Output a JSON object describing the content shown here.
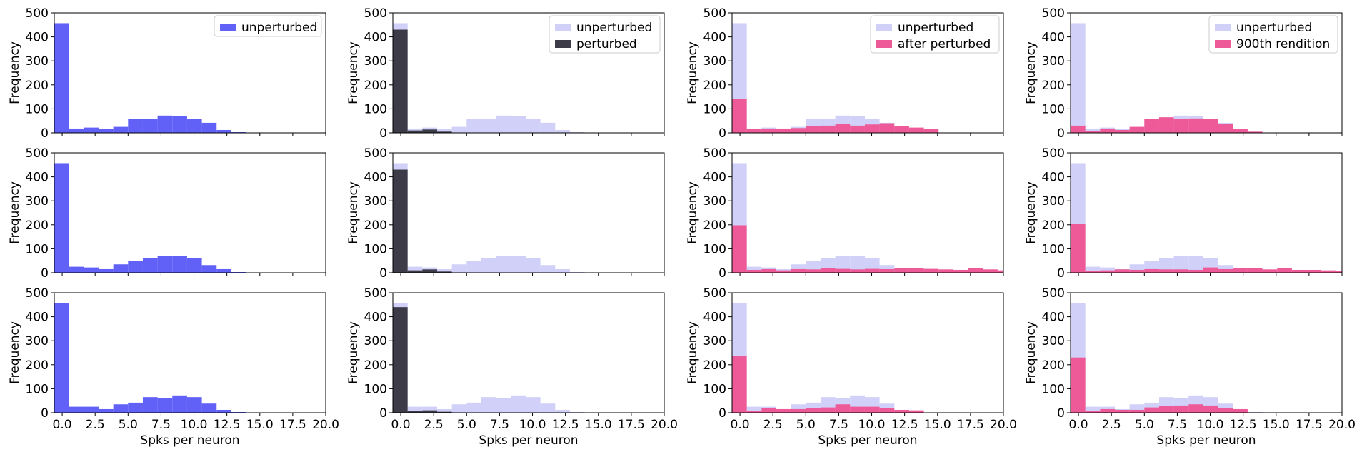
{
  "chart_data": {
    "type": "bar",
    "layout": "3x4 grid of histograms",
    "bins": [
      0,
      0.833,
      1.667,
      2.5,
      3.333,
      4.167,
      5,
      5.833,
      6.667,
      7.5,
      8.333,
      9.167,
      10,
      10.833,
      11.667,
      12.5,
      13.333,
      14.167,
      15,
      15.833,
      16.667,
      17.5,
      18.333,
      19.167,
      20
    ],
    "bin_start": -0.6,
    "bin_width": 1.12,
    "xlim": [
      -0.6,
      20
    ],
    "ylim": [
      0,
      500
    ],
    "xticks": [
      "0.0",
      "2.5",
      "5.0",
      "7.5",
      "10.0",
      "12.5",
      "15.0",
      "17.5",
      "20.0"
    ],
    "xtick_values": [
      0,
      2.5,
      5,
      7.5,
      10,
      12.5,
      15,
      17.5,
      20
    ],
    "yticks": [
      "0",
      "100",
      "200",
      "300",
      "400",
      "500"
    ],
    "ytick_values": [
      0,
      100,
      200,
      300,
      400,
      500
    ],
    "xlabel": "Spks per neuron",
    "ylabel": "Frequency",
    "colors": {
      "unperturbed": "#6161f7",
      "unperturbed_faded": "#d0d0f8",
      "perturbed": "#3d3b47",
      "after_perturbed": "#ee5a98",
      "axis": "#000000"
    },
    "legends": [
      [
        "unperturbed"
      ],
      [
        "unperturbed",
        "perturbed"
      ],
      [
        "unperturbed",
        "after perturbed"
      ],
      [
        "unperturbed",
        "900th rendition"
      ]
    ],
    "panels": [
      {
        "row": 0,
        "col": 0,
        "series": [
          {
            "name": "unperturbed",
            "style": "unperturbed",
            "values": [
              457,
              18,
              22,
              15,
              25,
              58,
              58,
              72,
              70,
              58,
              42,
              12,
              3,
              0,
              0,
              0,
              0,
              0
            ]
          }
        ]
      },
      {
        "row": 0,
        "col": 1,
        "series": [
          {
            "name": "unperturbed",
            "style": "unperturbed_faded",
            "values": [
              457,
              18,
              22,
              15,
              25,
              58,
              58,
              72,
              70,
              58,
              42,
              12,
              3,
              0,
              0,
              0,
              0,
              0
            ]
          },
          {
            "name": "perturbed",
            "style": "perturbed",
            "values": [
              430,
              10,
              14,
              5,
              0,
              0,
              0,
              0,
              0,
              0,
              0,
              0,
              0,
              0,
              0,
              0,
              0,
              0
            ]
          }
        ]
      },
      {
        "row": 0,
        "col": 2,
        "series": [
          {
            "name": "unperturbed",
            "style": "unperturbed_faded",
            "values": [
              457,
              18,
              22,
              15,
              25,
              58,
              58,
              72,
              70,
              58,
              42,
              12,
              3,
              0,
              0,
              0,
              0,
              0
            ]
          },
          {
            "name": "after perturbed",
            "style": "after_perturbed",
            "values": [
              140,
              15,
              18,
              18,
              20,
              28,
              30,
              38,
              30,
              35,
              40,
              28,
              22,
              15,
              0,
              0,
              0,
              0
            ]
          }
        ]
      },
      {
        "row": 0,
        "col": 3,
        "series": [
          {
            "name": "unperturbed",
            "style": "unperturbed_faded",
            "values": [
              457,
              18,
              22,
              15,
              25,
              58,
              58,
              72,
              70,
              58,
              42,
              12,
              3,
              0,
              0,
              0,
              0,
              0
            ]
          },
          {
            "name": "900th rendition",
            "style": "after_perturbed",
            "values": [
              30,
              8,
              18,
              12,
              25,
              58,
              65,
              58,
              60,
              58,
              38,
              15,
              5,
              0,
              0,
              0,
              0,
              0
            ]
          }
        ]
      },
      {
        "row": 1,
        "col": 0,
        "series": [
          {
            "name": "unperturbed",
            "style": "unperturbed",
            "values": [
              457,
              25,
              22,
              15,
              35,
              48,
              60,
              70,
              70,
              60,
              32,
              15,
              3,
              0,
              0,
              0,
              0,
              0
            ]
          }
        ]
      },
      {
        "row": 1,
        "col": 1,
        "series": [
          {
            "name": "unperturbed",
            "style": "unperturbed_faded",
            "values": [
              457,
              25,
              22,
              15,
              35,
              48,
              60,
              70,
              70,
              60,
              32,
              15,
              3,
              0,
              0,
              0,
              0,
              0
            ]
          },
          {
            "name": "perturbed",
            "style": "perturbed",
            "values": [
              430,
              10,
              14,
              5,
              0,
              0,
              0,
              0,
              0,
              0,
              0,
              0,
              0,
              0,
              0,
              0,
              0,
              0
            ]
          }
        ]
      },
      {
        "row": 1,
        "col": 2,
        "series": [
          {
            "name": "unperturbed",
            "style": "unperturbed_faded",
            "values": [
              457,
              25,
              22,
              15,
              35,
              48,
              60,
              70,
              70,
              60,
              32,
              15,
              3,
              0,
              0,
              0,
              0,
              0
            ]
          },
          {
            "name": "after perturbed",
            "style": "after_perturbed",
            "values": [
              198,
              12,
              15,
              10,
              15,
              14,
              18,
              16,
              14,
              16,
              15,
              18,
              18,
              16,
              14,
              12,
              20,
              14,
              10,
              10
            ]
          }
        ]
      },
      {
        "row": 1,
        "col": 3,
        "series": [
          {
            "name": "unperturbed",
            "style": "unperturbed_faded",
            "values": [
              457,
              25,
              22,
              15,
              35,
              48,
              60,
              70,
              70,
              60,
              32,
              15,
              3,
              0,
              0,
              0,
              0,
              0
            ]
          },
          {
            "name": "900th rendition",
            "style": "after_perturbed",
            "values": [
              205,
              8,
              10,
              14,
              12,
              15,
              14,
              14,
              12,
              22,
              15,
              18,
              18,
              14,
              18,
              12,
              12,
              10,
              8
            ]
          }
        ]
      },
      {
        "row": 2,
        "col": 0,
        "series": [
          {
            "name": "unperturbed",
            "style": "unperturbed",
            "values": [
              457,
              25,
              25,
              15,
              35,
              42,
              65,
              60,
              72,
              65,
              38,
              12,
              3,
              0,
              0,
              0,
              0,
              0
            ]
          }
        ]
      },
      {
        "row": 2,
        "col": 1,
        "series": [
          {
            "name": "unperturbed",
            "style": "unperturbed_faded",
            "values": [
              457,
              25,
              25,
              15,
              35,
              42,
              65,
              60,
              72,
              65,
              38,
              12,
              3,
              0,
              0,
              0,
              0,
              0
            ]
          },
          {
            "name": "perturbed",
            "style": "perturbed",
            "values": [
              440,
              8,
              10,
              4,
              0,
              0,
              0,
              0,
              0,
              0,
              0,
              0,
              0,
              0,
              0,
              0,
              0,
              0
            ]
          }
        ]
      },
      {
        "row": 2,
        "col": 2,
        "series": [
          {
            "name": "unperturbed",
            "style": "unperturbed_faded",
            "values": [
              457,
              25,
              25,
              15,
              35,
              42,
              65,
              60,
              72,
              65,
              38,
              12,
              3,
              0,
              0,
              0,
              0,
              0
            ]
          },
          {
            "name": "after perturbed",
            "style": "after_perturbed",
            "values": [
              235,
              8,
              18,
              15,
              15,
              18,
              22,
              35,
              25,
              25,
              20,
              12,
              10,
              0,
              0,
              0,
              0,
              0
            ]
          }
        ]
      },
      {
        "row": 2,
        "col": 3,
        "series": [
          {
            "name": "unperturbed",
            "style": "unperturbed_faded",
            "values": [
              457,
              25,
              25,
              15,
              35,
              42,
              65,
              60,
              72,
              65,
              38,
              12,
              3,
              0,
              0,
              0,
              0,
              0
            ]
          },
          {
            "name": "900th rendition",
            "style": "after_perturbed",
            "values": [
              230,
              8,
              15,
              12,
              12,
              22,
              28,
              30,
              35,
              30,
              18,
              15,
              0,
              0,
              0,
              0,
              0,
              0
            ]
          }
        ]
      }
    ]
  }
}
